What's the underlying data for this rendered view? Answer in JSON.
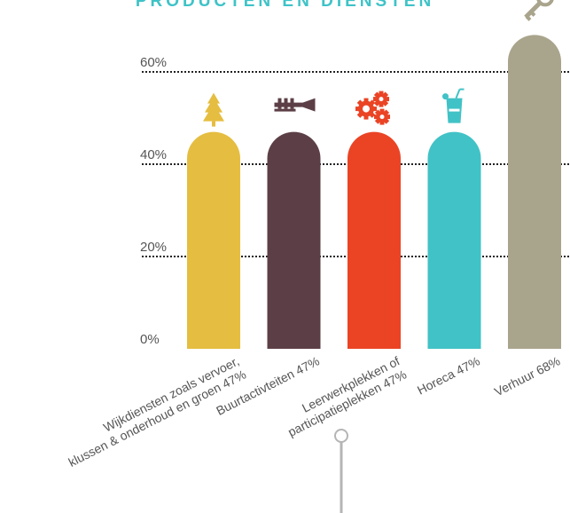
{
  "title": "PRODUCTEN EN DIENSTEN",
  "colors": {
    "grid": "#222222",
    "axis_text": "#555555",
    "ornament": "#b5b5b5",
    "bar_yellow": "#e5bd40",
    "bar_purple": "#5c3f46",
    "bar_red": "#ea4425",
    "bar_teal": "#41c2c6",
    "bar_khaki": "#a9a48c"
  },
  "chart_data": {
    "type": "bar",
    "title": "PRODUCTEN EN DIENSTEN",
    "categories": [
      "Wijkdiensten zoals vervoer,\nklussen & onderhoud en groen 47%",
      "Buurtactivteiten 47%",
      "Leerwerkplekken of\nparticipatieplekken 47%",
      "Horeca 47%",
      "Verhuur 68%"
    ],
    "values": [
      47,
      47,
      47,
      47,
      68
    ],
    "bar_colors": [
      "#e5bd40",
      "#5c3f46",
      "#ea4425",
      "#41c2c6",
      "#a9a48c"
    ],
    "icons": [
      "tree-icon",
      "trumpet-icon",
      "gears-icon",
      "drink-icon",
      "key-icon"
    ],
    "yticks": [
      "0%",
      "20%",
      "40%",
      "60%"
    ],
    "ytick_values": [
      0,
      20,
      40,
      60
    ],
    "ylim": [
      0,
      60
    ],
    "grid": true,
    "xlabel": "",
    "ylabel": ""
  }
}
